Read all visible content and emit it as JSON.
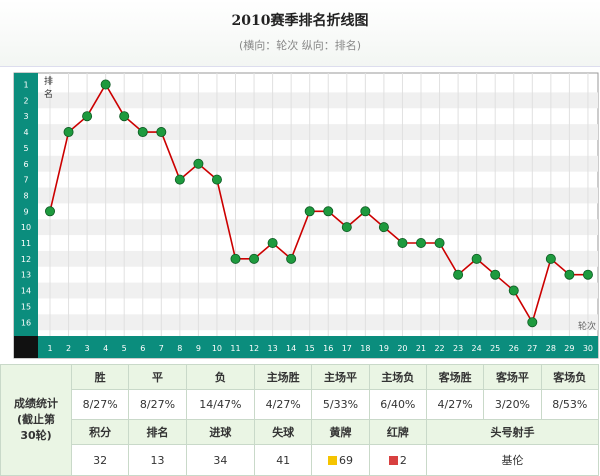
{
  "header": {
    "title": "2010赛季排名折线图",
    "subtitle": "(横向：轮次 纵向：排名)"
  },
  "chart_data": {
    "type": "line",
    "title": "2010赛季排名折线图",
    "subtitle": "(横向：轮次 纵向：排名)",
    "xlabel": "轮次",
    "ylabel": "排名",
    "x": [
      1,
      2,
      3,
      4,
      5,
      6,
      7,
      8,
      9,
      10,
      11,
      12,
      13,
      14,
      15,
      16,
      17,
      18,
      19,
      20,
      21,
      22,
      23,
      24,
      25,
      26,
      27,
      28,
      29,
      30
    ],
    "y_ticks": [
      1,
      2,
      3,
      4,
      5,
      6,
      7,
      8,
      9,
      10,
      11,
      12,
      13,
      14,
      15,
      16
    ],
    "ylim": [
      1,
      16
    ],
    "y_inverted": true,
    "grid": true,
    "series": [
      {
        "values": [
          9,
          4,
          3,
          1,
          3,
          4,
          4,
          7,
          6,
          7,
          12,
          12,
          11,
          12,
          9,
          9,
          10,
          9,
          10,
          11,
          11,
          11,
          13,
          12,
          13,
          14,
          16,
          12,
          13,
          13
        ]
      }
    ],
    "colors": {
      "line": "#cc0000",
      "marker": "#1e9a3e",
      "axis_bar": "#0a8a7a",
      "row_alt": "#f0f0f0"
    }
  },
  "stats": {
    "side_label_lines": [
      "成绩统计",
      "(截止第",
      "30轮)"
    ],
    "row1": {
      "headers": [
        "胜",
        "平",
        "负",
        "主场胜",
        "主场平",
        "主场负",
        "客场胜",
        "客场平",
        "客场负"
      ],
      "values": [
        "8/27%",
        "8/27%",
        "14/47%",
        "4/27%",
        "5/33%",
        "6/40%",
        "4/27%",
        "3/20%",
        "8/53%"
      ]
    },
    "row2": {
      "headers": [
        "积分",
        "排名",
        "进球",
        "失球",
        "黄牌",
        "红牌",
        "头号射手"
      ],
      "values": [
        "32",
        "13",
        "34",
        "41",
        "69",
        "2",
        "基伦"
      ]
    },
    "card_colors": {
      "yellow": "#f5c400",
      "red": "#d84040"
    }
  }
}
